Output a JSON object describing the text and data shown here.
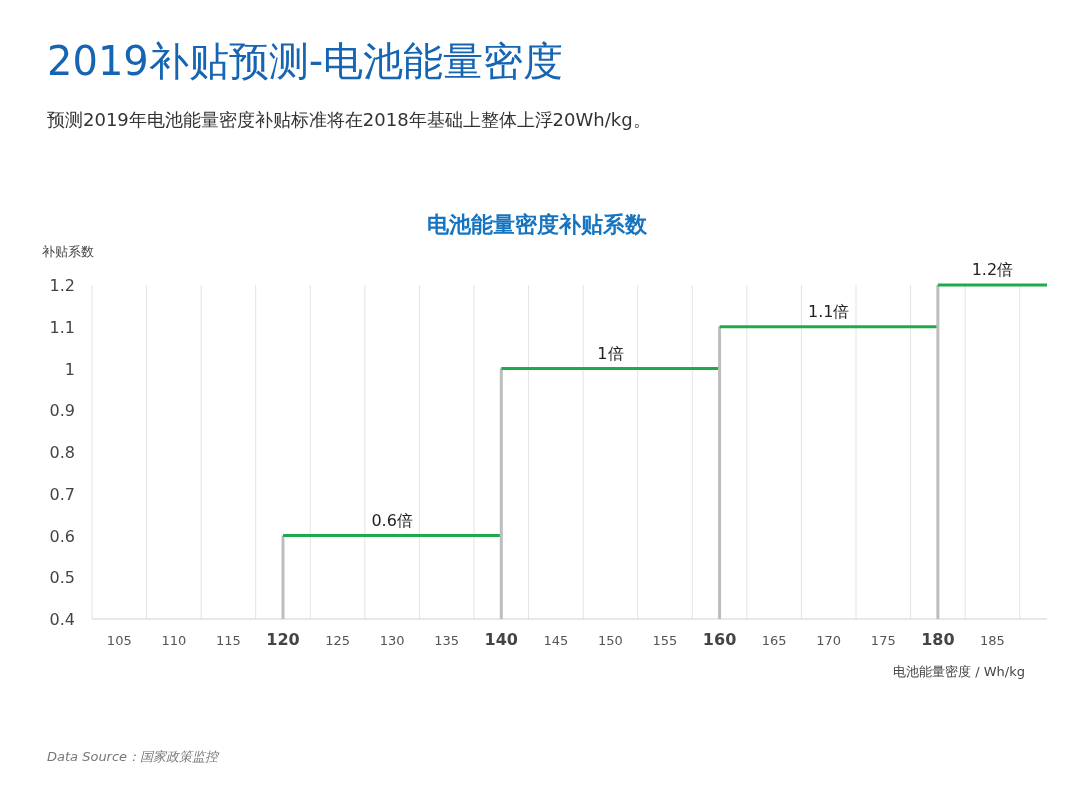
{
  "chart_data": {
    "type": "step",
    "title": "2019补贴预测-电池能量密度",
    "subtitle": "预测2019年电池能量密度补贴标准将在2018年基础上整体上浮20Wh/kg。",
    "annotations": [
      "电池能量密度补贴系数",
      "Data Source：国家政策监控"
    ],
    "xlabel": "电池能量密度 / Wh/kg",
    "ylabel": "补贴系数",
    "series": [
      {
        "color": "#1faa4b",
        "x": [
          120,
          130,
          140
        ],
        "values": [
          0.6,
          0.6,
          0.6
        ],
        "value_labels": [
          null,
          "0.6倍",
          null
        ]
      },
      {
        "color": "#1faa4b",
        "x": [
          140,
          150,
          160
        ],
        "values": [
          1,
          1,
          1
        ],
        "value_labels": [
          null,
          "1倍",
          null
        ]
      },
      {
        "color": "#1faa4b",
        "x": [
          160,
          170,
          180
        ],
        "values": [
          1.1,
          1.1,
          1.1
        ],
        "value_labels": [
          null,
          "1.1倍",
          null
        ]
      },
      {
        "color": "#1faa4b",
        "x": [
          180,
          185,
          190
        ],
        "values": [
          1.2,
          1.2,
          1.2
        ],
        "value_labels": [
          null,
          "1.2倍",
          null
        ]
      }
    ],
    "xlim": [
      102.5,
      190
    ],
    "xticks": [
      {
        "value": 102.5,
        "label": null
      },
      105,
      {
        "value": 107.5,
        "label": null
      },
      110,
      {
        "value": 112.5,
        "label": null
      },
      115,
      {
        "value": 117.5,
        "label": null
      },
      120,
      {
        "value": 122.5,
        "label": null
      },
      125,
      {
        "value": 127.5,
        "label": null
      },
      130,
      {
        "value": 132.5,
        "label": null
      },
      135,
      {
        "value": 137.5,
        "label": null
      },
      140,
      {
        "value": 142.5,
        "label": null
      },
      145,
      {
        "value": 147.5,
        "label": null
      },
      150,
      {
        "value": 152.5,
        "label": null
      },
      155,
      {
        "value": 157.5,
        "label": null
      },
      160,
      {
        "value": 162.5,
        "label": null
      },
      165,
      {
        "value": 167.5,
        "label": null
      },
      170,
      {
        "value": 172.5,
        "label": null
      },
      175,
      {
        "value": 177.5,
        "label": null
      },
      180,
      {
        "value": 182.5,
        "label": null
      },
      185,
      {
        "value": 187.5,
        "label": null
      }
    ],
    "ylim": [
      0.4,
      1.2
    ],
    "yticks": [
      0.4,
      0.5,
      0.6,
      0.7,
      0.8,
      0.9,
      {
        "value": 1,
        "label": "1"
      },
      1.1,
      1.2
    ],
    "grid": "x"
  }
}
